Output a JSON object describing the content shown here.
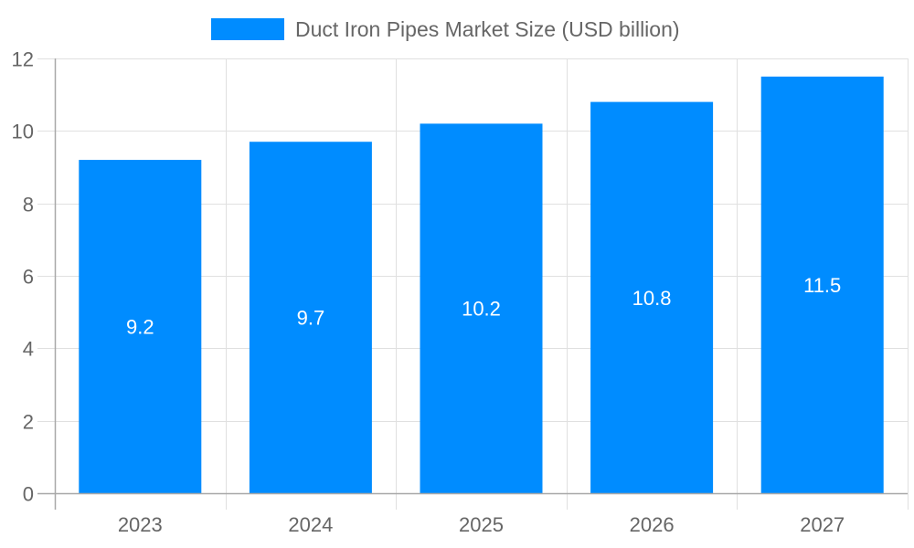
{
  "chart_data": {
    "type": "bar",
    "title": "",
    "categories": [
      "2023",
      "2024",
      "2025",
      "2026",
      "2027"
    ],
    "series": [
      {
        "name": "Duct Iron Pipes Market Size (USD billion)",
        "values": [
          9.2,
          9.7,
          10.2,
          10.8,
          11.5
        ],
        "color": "#008cff"
      }
    ],
    "data_labels": [
      "9.2",
      "9.7",
      "10.2",
      "10.8",
      "11.5"
    ],
    "xlabel": "",
    "ylabel": "",
    "ylim": [
      0,
      12
    ],
    "yticks": [
      0,
      2,
      4,
      6,
      8,
      10,
      12
    ],
    "grid": true,
    "legend_position": "top"
  },
  "legend": {
    "label": "Duct Iron Pipes Market Size (USD billion)",
    "color": "#008cff"
  }
}
